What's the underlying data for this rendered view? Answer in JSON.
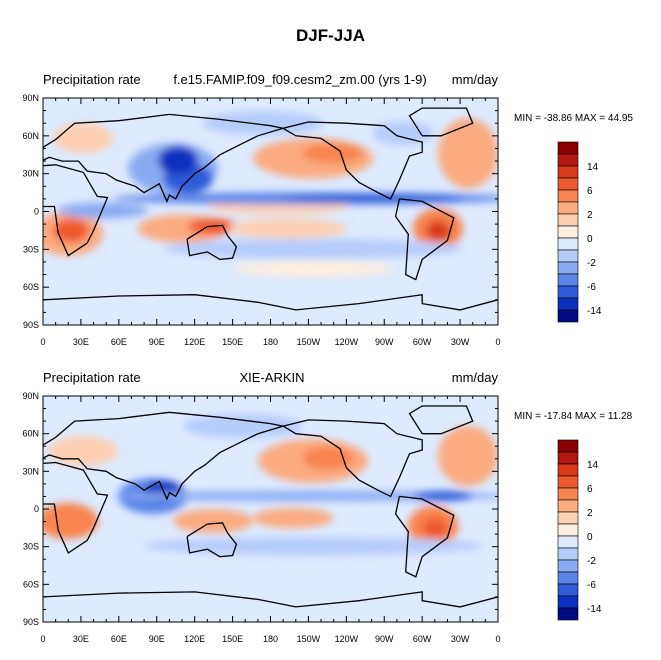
{
  "title": "DJF-JJA",
  "panels": [
    {
      "left_title": "Precipitation rate",
      "center_title": "f.e15.FAMIP.f09_f09.cesm2_zm.00 (yrs 1-9)",
      "right_title": "mm/day",
      "minmax": "MIN = -38.86 MAX =  44.95"
    },
    {
      "left_title": "Precipitation rate",
      "center_title": "XIE-ARKIN",
      "right_title": "mm/day",
      "minmax": "MIN = -17.84 MAX =  11.28"
    }
  ],
  "lat_labels": [
    "90N",
    "60N",
    "30N",
    "0",
    "30S",
    "60S",
    "90S"
  ],
  "lon_labels": [
    "0",
    "30E",
    "60E",
    "90E",
    "120E",
    "150E",
    "180",
    "150W",
    "120W",
    "90W",
    "60W",
    "30W",
    "0"
  ],
  "colorbar": {
    "labels": [
      "14",
      "6",
      "2",
      "0",
      "-2",
      "-6",
      "-14"
    ],
    "colors": [
      "#8b0000",
      "#b2180f",
      "#d63a1a",
      "#ee5a2f",
      "#f8844f",
      "#fbab80",
      "#fdd0b4",
      "#fdeee0",
      "#ddeaff",
      "#b5cdfa",
      "#8aabf2",
      "#5b85e8",
      "#2f5bd8",
      "#0b30c0",
      "#000b80"
    ]
  }
}
